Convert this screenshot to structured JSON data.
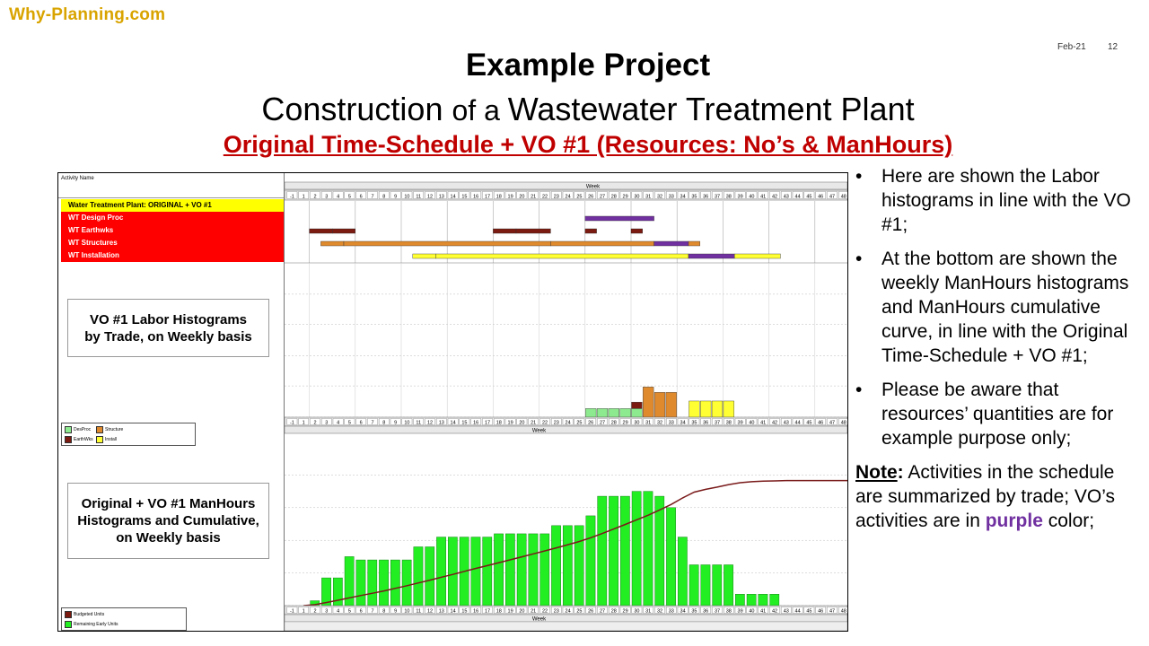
{
  "brand": "Why-Planning.com",
  "header": {
    "date": "Feb-21",
    "page": "12"
  },
  "title": {
    "line1": "Example Project",
    "line2_a": "Construction ",
    "line2_b": "of a ",
    "line2_c": "Wastewater Treatment Plant",
    "line3": "Original Time-Schedule + VO #1  (Resources: No’s & ManHours)"
  },
  "gantt": {
    "activity_header": "Activity Name",
    "week_label": "Week",
    "weeks": [
      "-1",
      "1",
      "2",
      "3",
      "4",
      "5",
      "6",
      "7",
      "8",
      "9",
      "10",
      "11",
      "12",
      "13",
      "14",
      "15",
      "16",
      "17",
      "18",
      "19",
      "20",
      "21",
      "22",
      "23",
      "24",
      "25",
      "26",
      "27",
      "28",
      "29",
      "30",
      "31",
      "32",
      "33",
      "34",
      "35",
      "36",
      "37",
      "38",
      "39",
      "40",
      "41",
      "42",
      "43",
      "44",
      "45",
      "46",
      "47",
      "48"
    ],
    "rows": [
      {
        "label": "Water Treatment Plant: ORIGINAL + VO #1",
        "bg": "#ffff00"
      },
      {
        "label": "WT Design Proc",
        "bg": "#ff0000"
      },
      {
        "label": "WT Earthwks",
        "bg": "#ff0000"
      },
      {
        "label": "WT Structures",
        "bg": "#ff0000"
      },
      {
        "label": "WT Installation",
        "bg": "#ff0000"
      }
    ]
  },
  "labor_callout": {
    "line1": "VO #1 Labor Histograms",
    "line2": "by Trade, on Weekly basis"
  },
  "labor_legend": {
    "items": [
      "DesProc",
      "Structure",
      "EarthWks",
      "Install"
    ]
  },
  "manhours_callout": {
    "line1": "Original + VO #1 ManHours",
    "line2": "Histograms and Cumulative,",
    "line3": "on Weekly basis"
  },
  "manhours_legend": {
    "items": [
      "Budgeted Units",
      "Remaining Early Units"
    ]
  },
  "colors": {
    "desproc": "#8eea8e",
    "structure": "#e08a2e",
    "earthwks": "#7a1a10",
    "install": "#ffff33",
    "vo": "#7030a0",
    "manhours_bar": "#22ee22",
    "cumulative": "#7a1a1a"
  },
  "chart_data": [
    {
      "type": "bar",
      "title": "",
      "xlabel": "Week",
      "ylabel": "",
      "yticks": [
        0,
        29,
        57,
        86,
        114
      ],
      "ylim": [
        0,
        143
      ],
      "series": [
        {
          "name": "DesProc",
          "x": [
            25,
            26,
            27,
            28,
            29
          ],
          "values": [
            8,
            8,
            8,
            8,
            8
          ]
        },
        {
          "name": "EarthWks",
          "x": [
            29
          ],
          "values": [
            6
          ]
        },
        {
          "name": "Structure",
          "x": [
            30,
            31,
            32
          ],
          "values": [
            28,
            23,
            23
          ]
        },
        {
          "name": "Install",
          "x": [
            34,
            35,
            36,
            37
          ],
          "values": [
            15,
            15,
            15,
            15
          ]
        }
      ]
    },
    {
      "type": "bar",
      "title": "",
      "xlabel": "Week",
      "ylabel": "",
      "yticks": [
        0,
        2000,
        4000,
        6000,
        8000
      ],
      "ylim": [
        0,
        10000
      ],
      "series": [
        {
          "name": "Remaining Early Units",
          "x": [
            1,
            2,
            3,
            4,
            5,
            6,
            7,
            8,
            9,
            10,
            11,
            12,
            13,
            14,
            15,
            16,
            17,
            18,
            19,
            20,
            21,
            22,
            23,
            24,
            25,
            26,
            27,
            28,
            29,
            30,
            31,
            32,
            33,
            34,
            35,
            36,
            37,
            38,
            39,
            40,
            41
          ],
          "values": [
            300,
            1700,
            1700,
            3000,
            2800,
            2800,
            2800,
            2800,
            2800,
            3600,
            3600,
            4200,
            4200,
            4200,
            4200,
            4200,
            4400,
            4400,
            4400,
            4400,
            4400,
            4900,
            4900,
            4900,
            5500,
            6700,
            6700,
            6700,
            7000,
            7000,
            6700,
            6000,
            4200,
            2500,
            2500,
            2500,
            2500,
            700,
            700,
            700,
            700
          ]
        },
        {
          "name": "Budgeted Units",
          "type": "line",
          "x": [
            0,
            1,
            2,
            3,
            4,
            5,
            6,
            7,
            8,
            9,
            10,
            11,
            12,
            13,
            14,
            15,
            16,
            17,
            18,
            19,
            20,
            21,
            22,
            23,
            24,
            25,
            26,
            27,
            28,
            29,
            30,
            31,
            32,
            33,
            34,
            35,
            36,
            37,
            38,
            39,
            40,
            41,
            42,
            43,
            44,
            45,
            46,
            47,
            48
          ],
          "values": [
            0,
            60,
            190,
            330,
            480,
            620,
            760,
            900,
            1060,
            1220,
            1390,
            1560,
            1740,
            1910,
            2100,
            2280,
            2450,
            2630,
            2810,
            2990,
            3170,
            3350,
            3540,
            3730,
            3930,
            4160,
            4420,
            4690,
            4970,
            5260,
            5540,
            5860,
            6200,
            6600,
            6950,
            7120,
            7260,
            7410,
            7530,
            7590,
            7620,
            7640,
            7660,
            7660,
            7660,
            7660,
            7660,
            7660,
            7660
          ]
        }
      ]
    }
  ],
  "bullets": [
    "Here are shown the Labor histograms in line with the VO #1;",
    "At the bottom are shown the weekly ManHours histograms and ManHours cumulative curve, in line with the Original Time-Schedule + VO #1;",
    "Please be aware that resources’ quantities are for example purpose only;"
  ],
  "note": {
    "label": "Note",
    "colon": ":",
    "text_a": " Activities in the schedule are summarized by trade; VO’s activities are in ",
    "purple_word": "purple",
    "text_b": " color;"
  }
}
